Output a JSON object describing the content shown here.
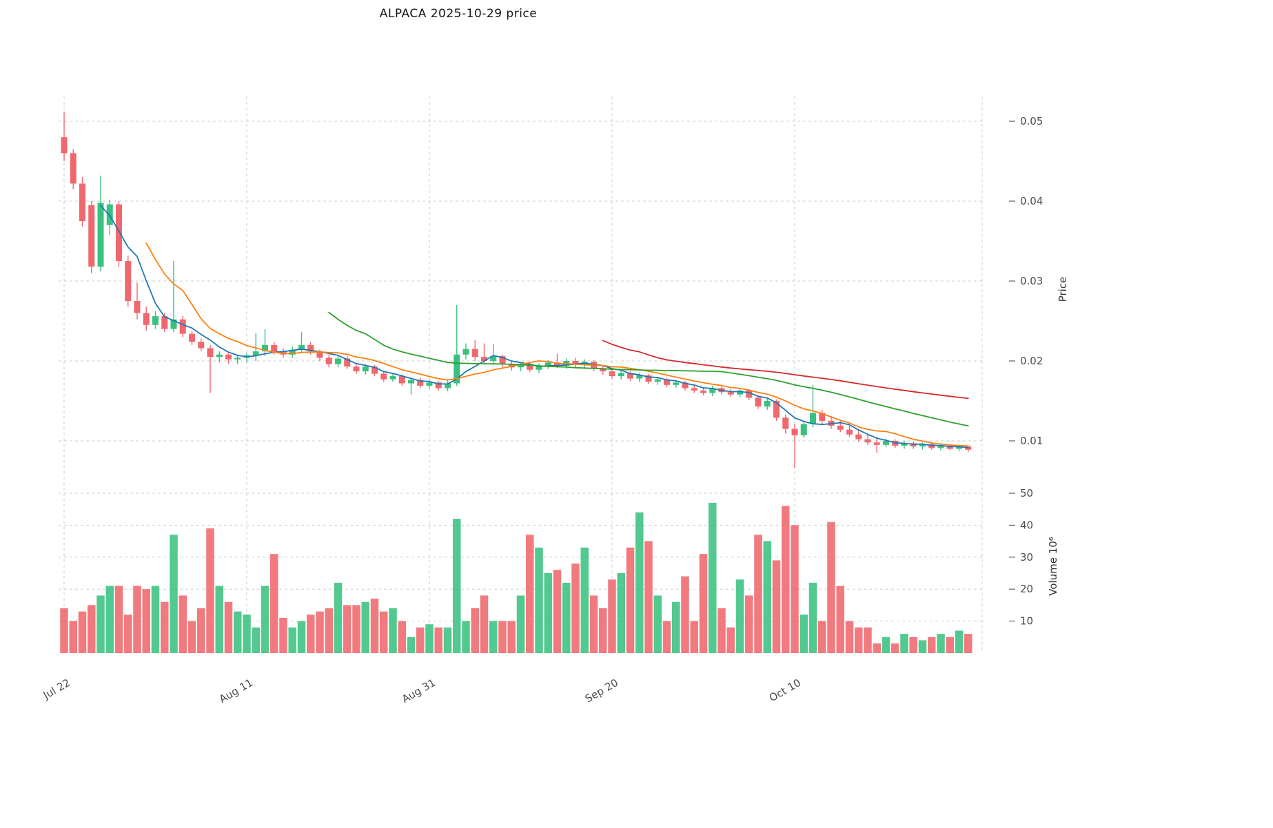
{
  "title": "ALPACA  2025-10-29  price",
  "chart_data": {
    "type": "candlestick",
    "title": "ALPACA  2025-10-29  price",
    "x_axis": {
      "tick_labels": [
        "Jul 22",
        "Aug 11",
        "Aug 31",
        "Sep 20",
        "Oct 10"
      ],
      "tick_indices": [
        0,
        20,
        40,
        60,
        80
      ]
    },
    "price_axis": {
      "label": "Price",
      "ticks": [
        0.01,
        0.02,
        0.03,
        0.04,
        0.05
      ],
      "range": [
        0.0066,
        0.0512
      ]
    },
    "volume_axis": {
      "label": "Volume  10⁶",
      "ticks": [
        10,
        20,
        30,
        40,
        50
      ],
      "unit": "millions"
    },
    "colors": {
      "up": "#3ac17f",
      "down": "#ef686d",
      "ma5": "#1f77b4",
      "ma10": "#ff7f0e",
      "ma30": "#2ca02c",
      "ma60": "#d62728",
      "grid": "#cdcdcd",
      "text": "#4b4b4b"
    },
    "moving_averages": [
      {
        "window": 5,
        "color_key": "ma5"
      },
      {
        "window": 10,
        "color_key": "ma10"
      },
      {
        "window": 30,
        "color_key": "ma30"
      },
      {
        "window": 60,
        "color_key": "ma60"
      }
    ],
    "candles": {
      "columns": [
        "open",
        "high",
        "low",
        "close",
        "volume"
      ],
      "rows": [
        [
          0.048,
          0.0512,
          0.045,
          0.046,
          14
        ],
        [
          0.046,
          0.0465,
          0.0415,
          0.0422,
          10
        ],
        [
          0.0422,
          0.043,
          0.0368,
          0.0375,
          13
        ],
        [
          0.0395,
          0.04,
          0.031,
          0.0318,
          15
        ],
        [
          0.0318,
          0.0432,
          0.0312,
          0.0398,
          18
        ],
        [
          0.037,
          0.0402,
          0.0358,
          0.0396,
          21
        ],
        [
          0.0396,
          0.04,
          0.0318,
          0.0325,
          21
        ],
        [
          0.0325,
          0.0332,
          0.0268,
          0.0275,
          12
        ],
        [
          0.0275,
          0.0298,
          0.0252,
          0.026,
          21
        ],
        [
          0.026,
          0.0268,
          0.0238,
          0.0245,
          20
        ],
        [
          0.0245,
          0.0262,
          0.024,
          0.0256,
          21
        ],
        [
          0.0256,
          0.026,
          0.0236,
          0.024,
          16
        ],
        [
          0.024,
          0.0325,
          0.0236,
          0.0252,
          37
        ],
        [
          0.0252,
          0.0256,
          0.023,
          0.0234,
          18
        ],
        [
          0.0234,
          0.0238,
          0.022,
          0.0224,
          10
        ],
        [
          0.0224,
          0.0228,
          0.0212,
          0.0216,
          14
        ],
        [
          0.0216,
          0.022,
          0.016,
          0.0205,
          39
        ],
        [
          0.0205,
          0.0212,
          0.0198,
          0.0208,
          21
        ],
        [
          0.0208,
          0.021,
          0.0196,
          0.0202,
          16
        ],
        [
          0.0202,
          0.0207,
          0.0196,
          0.0204,
          13
        ],
        [
          0.0204,
          0.021,
          0.0198,
          0.0207,
          12
        ],
        [
          0.0207,
          0.0235,
          0.02,
          0.0212,
          8
        ],
        [
          0.0212,
          0.024,
          0.0206,
          0.022,
          21
        ],
        [
          0.022,
          0.0224,
          0.0208,
          0.0212,
          31
        ],
        [
          0.0212,
          0.0216,
          0.0204,
          0.0208,
          11
        ],
        [
          0.0208,
          0.0218,
          0.0204,
          0.0214,
          8
        ],
        [
          0.0214,
          0.0236,
          0.021,
          0.022,
          10
        ],
        [
          0.022,
          0.0224,
          0.0208,
          0.0212,
          12
        ],
        [
          0.0212,
          0.0214,
          0.02,
          0.0204,
          13
        ],
        [
          0.0204,
          0.0208,
          0.0192,
          0.0196,
          14
        ],
        [
          0.0196,
          0.0206,
          0.0192,
          0.0203,
          22
        ],
        [
          0.0203,
          0.0206,
          0.019,
          0.0193,
          15
        ],
        [
          0.0193,
          0.0196,
          0.0184,
          0.0187,
          15
        ],
        [
          0.0187,
          0.0196,
          0.0183,
          0.0193,
          16
        ],
        [
          0.0193,
          0.0195,
          0.0181,
          0.0184,
          17
        ],
        [
          0.0184,
          0.0187,
          0.0174,
          0.0177,
          13
        ],
        [
          0.0177,
          0.0184,
          0.0174,
          0.0181,
          14
        ],
        [
          0.0181,
          0.0183,
          0.0169,
          0.0172,
          10
        ],
        [
          0.0172,
          0.0178,
          0.0158,
          0.0176,
          5
        ],
        [
          0.0176,
          0.0179,
          0.0166,
          0.0169,
          8
        ],
        [
          0.0169,
          0.0176,
          0.0165,
          0.0173,
          9
        ],
        [
          0.0173,
          0.0175,
          0.0163,
          0.0166,
          8
        ],
        [
          0.0166,
          0.0176,
          0.0162,
          0.0172,
          8
        ],
        [
          0.0172,
          0.027,
          0.0169,
          0.0208,
          42
        ],
        [
          0.0208,
          0.0222,
          0.0202,
          0.0215,
          10
        ],
        [
          0.0215,
          0.0226,
          0.02,
          0.0205,
          14
        ],
        [
          0.0205,
          0.0222,
          0.0196,
          0.02,
          18
        ],
        [
          0.02,
          0.0221,
          0.0195,
          0.0206,
          10
        ],
        [
          0.0206,
          0.0208,
          0.0192,
          0.0196,
          10
        ],
        [
          0.0196,
          0.02,
          0.0188,
          0.0192,
          10
        ],
        [
          0.0192,
          0.0199,
          0.0187,
          0.0196,
          18
        ],
        [
          0.0196,
          0.0198,
          0.0186,
          0.0189,
          37
        ],
        [
          0.0189,
          0.0197,
          0.0185,
          0.0194,
          33
        ],
        [
          0.0194,
          0.0201,
          0.019,
          0.0198,
          25
        ],
        [
          0.0198,
          0.0209,
          0.0191,
          0.0194,
          26
        ],
        [
          0.0194,
          0.0203,
          0.019,
          0.02,
          22
        ],
        [
          0.02,
          0.0204,
          0.0192,
          0.0195,
          28
        ],
        [
          0.0195,
          0.0202,
          0.019,
          0.0199,
          33
        ],
        [
          0.0199,
          0.0201,
          0.0187,
          0.019,
          18
        ],
        [
          0.019,
          0.0194,
          0.0183,
          0.0187,
          14
        ],
        [
          0.0187,
          0.019,
          0.0178,
          0.0181,
          23
        ],
        [
          0.0181,
          0.0187,
          0.0177,
          0.0185,
          25
        ],
        [
          0.0185,
          0.0187,
          0.0175,
          0.0178,
          33
        ],
        [
          0.0178,
          0.0185,
          0.0174,
          0.0182,
          44
        ],
        [
          0.0182,
          0.0184,
          0.0171,
          0.0174,
          35
        ],
        [
          0.0174,
          0.018,
          0.017,
          0.0177,
          18
        ],
        [
          0.0177,
          0.0179,
          0.0167,
          0.017,
          10
        ],
        [
          0.017,
          0.0176,
          0.0166,
          0.0173,
          16
        ],
        [
          0.0173,
          0.0175,
          0.0163,
          0.0166,
          24
        ],
        [
          0.0166,
          0.017,
          0.016,
          0.0163,
          10
        ],
        [
          0.0163,
          0.0167,
          0.0157,
          0.016,
          31
        ],
        [
          0.016,
          0.0169,
          0.0156,
          0.0166,
          47
        ],
        [
          0.0166,
          0.0168,
          0.0158,
          0.0161,
          14
        ],
        [
          0.0161,
          0.0165,
          0.0155,
          0.0158,
          8
        ],
        [
          0.0158,
          0.0165,
          0.0155,
          0.0163,
          23
        ],
        [
          0.0163,
          0.0165,
          0.0151,
          0.0154,
          18
        ],
        [
          0.0154,
          0.0157,
          0.014,
          0.0143,
          37
        ],
        [
          0.0143,
          0.0153,
          0.0139,
          0.015,
          35
        ],
        [
          0.015,
          0.0152,
          0.0125,
          0.0129,
          29
        ],
        [
          0.0129,
          0.0133,
          0.0109,
          0.0115,
          46
        ],
        [
          0.0115,
          0.0121,
          0.0066,
          0.0107,
          40
        ],
        [
          0.0107,
          0.0125,
          0.0104,
          0.0121,
          12
        ],
        [
          0.0121,
          0.017,
          0.0117,
          0.0135,
          22
        ],
        [
          0.0135,
          0.0139,
          0.0121,
          0.0125,
          10
        ],
        [
          0.0125,
          0.0131,
          0.0115,
          0.0119,
          41
        ],
        [
          0.0119,
          0.0125,
          0.0111,
          0.0114,
          21
        ],
        [
          0.0114,
          0.0119,
          0.0105,
          0.0108,
          10
        ],
        [
          0.0108,
          0.0113,
          0.0099,
          0.0102,
          8
        ],
        [
          0.0102,
          0.0109,
          0.0095,
          0.0098,
          8
        ],
        [
          0.0098,
          0.0105,
          0.0085,
          0.0095,
          3
        ],
        [
          0.0095,
          0.0103,
          0.0092,
          0.01,
          5
        ],
        [
          0.01,
          0.0102,
          0.0091,
          0.0094,
          3
        ],
        [
          0.0094,
          0.01,
          0.009,
          0.0097,
          6
        ],
        [
          0.0097,
          0.0099,
          0.009,
          0.0093,
          5
        ],
        [
          0.0093,
          0.0098,
          0.0089,
          0.0096,
          4
        ],
        [
          0.0096,
          0.0097,
          0.0089,
          0.0091,
          5
        ],
        [
          0.0091,
          0.0096,
          0.0088,
          0.0094,
          6
        ],
        [
          0.0094,
          0.0096,
          0.0088,
          0.009,
          5
        ],
        [
          0.009,
          0.0095,
          0.0087,
          0.0093,
          7
        ],
        [
          0.0093,
          0.0094,
          0.0086,
          0.0089,
          6
        ]
      ]
    }
  }
}
